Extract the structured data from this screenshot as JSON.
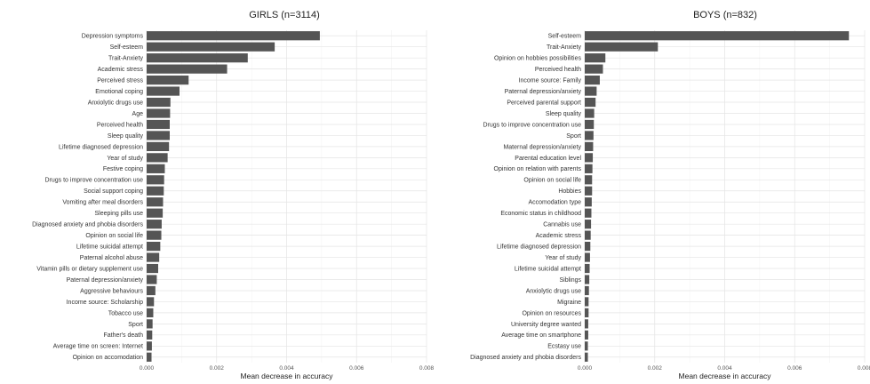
{
  "colors": {
    "bar": "#555555",
    "grid": "#e4e4e4",
    "text": "#333333"
  },
  "chart_data": [
    {
      "type": "bar",
      "orientation": "horizontal",
      "title": "GIRLS (n=3114)",
      "xlabel": "Mean decrease in accuracy",
      "ylabel": "",
      "xlim": [
        0,
        0.008
      ],
      "xticks": [
        "0.000",
        "0.002",
        "0.004",
        "0.006",
        "0.008"
      ],
      "grid": true,
      "categories": [
        "Depression symptoms",
        "Self-esteem",
        "Trait-Anxiety",
        "Academic stress",
        "Perceived stress",
        "Emotional coping",
        "Anxiolytic drugs use",
        "Age",
        "Perceived health",
        "Sleep quality",
        "Lifetime diagnosed depression",
        "Year of study",
        "Festive coping",
        "Drugs to improve concentration use",
        "Social support coping",
        "Vomiting after meal disorders",
        "Sleeping pills use",
        "Diagnosed anxiety and phobia disorders",
        "Opinion on social life",
        "Lifetime suicidal attempt",
        "Paternal alcohol abuse",
        "Vitamin pills or dietary supplement use",
        "Paternal depression/anxiety",
        "Aggressive behaviours",
        "Income source: Scholarship",
        "Tobacco use",
        "Sport",
        "Father's death",
        "Average time on screen: Internet",
        "Opinion on accomodation"
      ],
      "values": [
        0.00495,
        0.00366,
        0.00289,
        0.0023,
        0.0012,
        0.00094,
        0.00068,
        0.00067,
        0.00066,
        0.00066,
        0.00064,
        0.0006,
        0.00052,
        0.0005,
        0.00049,
        0.00047,
        0.00046,
        0.00043,
        0.00042,
        0.00039,
        0.00036,
        0.00033,
        0.00029,
        0.00025,
        0.00021,
        0.00019,
        0.00017,
        0.00016,
        0.00015,
        0.00014
      ]
    },
    {
      "type": "bar",
      "orientation": "horizontal",
      "title": "BOYS (n=832)",
      "xlabel": "Mean decrease in accuracy",
      "ylabel": "",
      "xlim": [
        0,
        0.008
      ],
      "xticks": [
        "0.000",
        "0.002",
        "0.004",
        "0.006",
        "0.008"
      ],
      "grid": true,
      "categories": [
        "Self-esteem",
        "Trait-Anxiety",
        "Opinion on hobbies possibilities",
        "Perceived health",
        "Income source: Family",
        "Paternal depression/anxiety",
        "Perceived parental support",
        "Sleep quality",
        "Drugs to improve concentration use",
        "Sport",
        "Maternal depression/anxiety",
        "Parental education level",
        "Opinion on relation with parents",
        "Opinion on social life",
        "Hobbies",
        "Accomodation type",
        "Economic status in childhood",
        "Cannabis use",
        "Academic stress",
        "Lifetime diagnosed depression",
        "Year of study",
        "Lifetime suicidal attempt",
        "Siblings",
        "Anxiolytic drugs use",
        "Migraine",
        "Opinion on resources",
        "University degree wanted",
        "Average time on smartphone",
        "Ecstasy use",
        "Diagnosed anxiety and phobia disorders"
      ],
      "values": [
        0.00755,
        0.00209,
        0.00059,
        0.00052,
        0.00043,
        0.00034,
        0.00031,
        0.00027,
        0.00026,
        0.00025,
        0.00024,
        0.00023,
        0.00022,
        0.00021,
        0.00021,
        0.0002,
        0.00019,
        0.00018,
        0.00017,
        0.00016,
        0.00015,
        0.00014,
        0.00013,
        0.00012,
        0.00011,
        0.00011,
        0.0001,
        0.0001,
        9e-05,
        9e-05
      ]
    }
  ]
}
